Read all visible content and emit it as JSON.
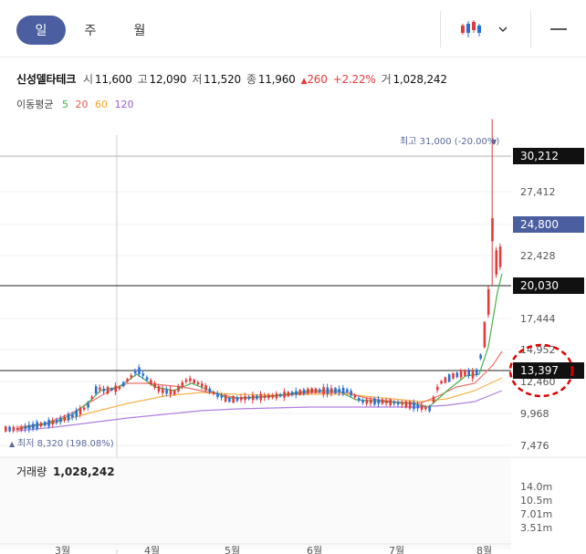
{
  "tabs": [
    {
      "label": "일",
      "active": true
    },
    {
      "label": "주",
      "active": false
    },
    {
      "label": "월",
      "active": false
    }
  ],
  "toolbar": {
    "chart_type_icon": "candlestick-icon",
    "dropdown_icon": "chevron-down-icon",
    "menu_icon": "minus-icon"
  },
  "quote": {
    "name": "신성델타테크",
    "open_label": "시",
    "open": "11,600",
    "high_label": "고",
    "high": "12,090",
    "low_label": "저",
    "low": "11,520",
    "close_label": "종",
    "close": "11,960",
    "change": "260",
    "change_pct": "+2.22%",
    "volume_label": "거",
    "volume": "1,028,242"
  },
  "moving_average": {
    "label": "이동평균",
    "periods": [
      {
        "value": "5",
        "color": "#3cb043"
      },
      {
        "value": "20",
        "color": "#e8584e"
      },
      {
        "value": "60",
        "color": "#f5a623"
      },
      {
        "value": "120",
        "color": "#9b59d0"
      }
    ]
  },
  "chart_data": {
    "type": "candlestick",
    "y_ticks": [
      "27,412",
      "22,428",
      "17,444",
      "14,952",
      "12,460",
      "9,968",
      "7,476"
    ],
    "price_labels": [
      {
        "text": "30,212",
        "style": "black"
      },
      {
        "text": "24,800",
        "style": "blue"
      },
      {
        "text": "20,030",
        "style": "black"
      },
      {
        "text": "13,397",
        "style": "black"
      }
    ],
    "annotations": {
      "max": "최고 31,000 (-20.00%)",
      "min": "최저 8,320 (198.08%)"
    },
    "volume_label": "거래량",
    "volume_value": "1,028,242",
    "volume_ticks": [
      "14.0m",
      "10.5m",
      "7.01m",
      "3.51m"
    ],
    "x_ticks": [
      "3월",
      "4월",
      "5월",
      "6월",
      "7월",
      "8월"
    ],
    "up_color": "#e23b3b",
    "down_color": "#2a6ed8"
  }
}
